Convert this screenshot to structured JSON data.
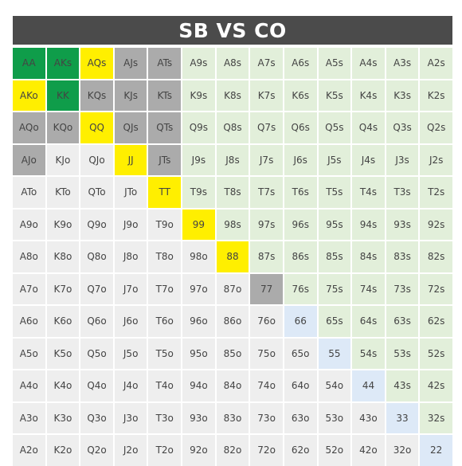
{
  "title": "SB VS CO",
  "colors": {
    "dark_green": "#0f9d4a",
    "yellow": "#ffef00",
    "grey": "#ababab",
    "light_green": "#e2efda",
    "light_blue": "#dde9f7",
    "light_grey": "#eeeeee"
  },
  "grid": [
    [
      {
        "h": "AA",
        "c": "dark_green"
      },
      {
        "h": "AKs",
        "c": "dark_green"
      },
      {
        "h": "AQs",
        "c": "yellow"
      },
      {
        "h": "AJs",
        "c": "grey"
      },
      {
        "h": "ATs",
        "c": "grey"
      },
      {
        "h": "A9s",
        "c": "light_green"
      },
      {
        "h": "A8s",
        "c": "light_green"
      },
      {
        "h": "A7s",
        "c": "light_green"
      },
      {
        "h": "A6s",
        "c": "light_green"
      },
      {
        "h": "A5s",
        "c": "light_green"
      },
      {
        "h": "A4s",
        "c": "light_green"
      },
      {
        "h": "A3s",
        "c": "light_green"
      },
      {
        "h": "A2s",
        "c": "light_green"
      }
    ],
    [
      {
        "h": "AKo",
        "c": "yellow"
      },
      {
        "h": "KK",
        "c": "dark_green"
      },
      {
        "h": "KQs",
        "c": "grey"
      },
      {
        "h": "KJs",
        "c": "grey"
      },
      {
        "h": "KTs",
        "c": "grey"
      },
      {
        "h": "K9s",
        "c": "light_green"
      },
      {
        "h": "K8s",
        "c": "light_green"
      },
      {
        "h": "K7s",
        "c": "light_green"
      },
      {
        "h": "K6s",
        "c": "light_green"
      },
      {
        "h": "K5s",
        "c": "light_green"
      },
      {
        "h": "K4s",
        "c": "light_green"
      },
      {
        "h": "K3s",
        "c": "light_green"
      },
      {
        "h": "K2s",
        "c": "light_green"
      }
    ],
    [
      {
        "h": "AQo",
        "c": "grey"
      },
      {
        "h": "KQo",
        "c": "grey"
      },
      {
        "h": "QQ",
        "c": "yellow"
      },
      {
        "h": "QJs",
        "c": "grey"
      },
      {
        "h": "QTs",
        "c": "grey"
      },
      {
        "h": "Q9s",
        "c": "light_green"
      },
      {
        "h": "Q8s",
        "c": "light_green"
      },
      {
        "h": "Q7s",
        "c": "light_green"
      },
      {
        "h": "Q6s",
        "c": "light_green"
      },
      {
        "h": "Q5s",
        "c": "light_green"
      },
      {
        "h": "Q4s",
        "c": "light_green"
      },
      {
        "h": "Q3s",
        "c": "light_green"
      },
      {
        "h": "Q2s",
        "c": "light_green"
      }
    ],
    [
      {
        "h": "AJo",
        "c": "grey"
      },
      {
        "h": "KJo",
        "c": "light_grey"
      },
      {
        "h": "QJo",
        "c": "light_grey"
      },
      {
        "h": "JJ",
        "c": "yellow"
      },
      {
        "h": "JTs",
        "c": "grey"
      },
      {
        "h": "J9s",
        "c": "light_green"
      },
      {
        "h": "J8s",
        "c": "light_green"
      },
      {
        "h": "J7s",
        "c": "light_green"
      },
      {
        "h": "J6s",
        "c": "light_green"
      },
      {
        "h": "J5s",
        "c": "light_green"
      },
      {
        "h": "J4s",
        "c": "light_green"
      },
      {
        "h": "J3s",
        "c": "light_green"
      },
      {
        "h": "J2s",
        "c": "light_green"
      }
    ],
    [
      {
        "h": "ATo",
        "c": "light_grey"
      },
      {
        "h": "KTo",
        "c": "light_grey"
      },
      {
        "h": "QTo",
        "c": "light_grey"
      },
      {
        "h": "JTo",
        "c": "light_grey"
      },
      {
        "h": "TT",
        "c": "yellow"
      },
      {
        "h": "T9s",
        "c": "light_green"
      },
      {
        "h": "T8s",
        "c": "light_green"
      },
      {
        "h": "T7s",
        "c": "light_green"
      },
      {
        "h": "T6s",
        "c": "light_green"
      },
      {
        "h": "T5s",
        "c": "light_green"
      },
      {
        "h": "T4s",
        "c": "light_green"
      },
      {
        "h": "T3s",
        "c": "light_green"
      },
      {
        "h": "T2s",
        "c": "light_green"
      }
    ],
    [
      {
        "h": "A9o",
        "c": "light_grey"
      },
      {
        "h": "K9o",
        "c": "light_grey"
      },
      {
        "h": "Q9o",
        "c": "light_grey"
      },
      {
        "h": "J9o",
        "c": "light_grey"
      },
      {
        "h": "T9o",
        "c": "light_grey"
      },
      {
        "h": "99",
        "c": "yellow"
      },
      {
        "h": "98s",
        "c": "light_green"
      },
      {
        "h": "97s",
        "c": "light_green"
      },
      {
        "h": "96s",
        "c": "light_green"
      },
      {
        "h": "95s",
        "c": "light_green"
      },
      {
        "h": "94s",
        "c": "light_green"
      },
      {
        "h": "93s",
        "c": "light_green"
      },
      {
        "h": "92s",
        "c": "light_green"
      }
    ],
    [
      {
        "h": "A8o",
        "c": "light_grey"
      },
      {
        "h": "K8o",
        "c": "light_grey"
      },
      {
        "h": "Q8o",
        "c": "light_grey"
      },
      {
        "h": "J8o",
        "c": "light_grey"
      },
      {
        "h": "T8o",
        "c": "light_grey"
      },
      {
        "h": "98o",
        "c": "light_grey"
      },
      {
        "h": "88",
        "c": "yellow"
      },
      {
        "h": "87s",
        "c": "light_green"
      },
      {
        "h": "86s",
        "c": "light_green"
      },
      {
        "h": "85s",
        "c": "light_green"
      },
      {
        "h": "84s",
        "c": "light_green"
      },
      {
        "h": "83s",
        "c": "light_green"
      },
      {
        "h": "82s",
        "c": "light_green"
      }
    ],
    [
      {
        "h": "A7o",
        "c": "light_grey"
      },
      {
        "h": "K7o",
        "c": "light_grey"
      },
      {
        "h": "Q7o",
        "c": "light_grey"
      },
      {
        "h": "J7o",
        "c": "light_grey"
      },
      {
        "h": "T7o",
        "c": "light_grey"
      },
      {
        "h": "97o",
        "c": "light_grey"
      },
      {
        "h": "87o",
        "c": "light_grey"
      },
      {
        "h": "77",
        "c": "grey"
      },
      {
        "h": "76s",
        "c": "light_green"
      },
      {
        "h": "75s",
        "c": "light_green"
      },
      {
        "h": "74s",
        "c": "light_green"
      },
      {
        "h": "73s",
        "c": "light_green"
      },
      {
        "h": "72s",
        "c": "light_green"
      }
    ],
    [
      {
        "h": "A6o",
        "c": "light_grey"
      },
      {
        "h": "K6o",
        "c": "light_grey"
      },
      {
        "h": "Q6o",
        "c": "light_grey"
      },
      {
        "h": "J6o",
        "c": "light_grey"
      },
      {
        "h": "T6o",
        "c": "light_grey"
      },
      {
        "h": "96o",
        "c": "light_grey"
      },
      {
        "h": "86o",
        "c": "light_grey"
      },
      {
        "h": "76o",
        "c": "light_grey"
      },
      {
        "h": "66",
        "c": "light_blue"
      },
      {
        "h": "65s",
        "c": "light_green"
      },
      {
        "h": "64s",
        "c": "light_green"
      },
      {
        "h": "63s",
        "c": "light_green"
      },
      {
        "h": "62s",
        "c": "light_green"
      }
    ],
    [
      {
        "h": "A5o",
        "c": "light_grey"
      },
      {
        "h": "K5o",
        "c": "light_grey"
      },
      {
        "h": "Q5o",
        "c": "light_grey"
      },
      {
        "h": "J5o",
        "c": "light_grey"
      },
      {
        "h": "T5o",
        "c": "light_grey"
      },
      {
        "h": "95o",
        "c": "light_grey"
      },
      {
        "h": "85o",
        "c": "light_grey"
      },
      {
        "h": "75o",
        "c": "light_grey"
      },
      {
        "h": "65o",
        "c": "light_grey"
      },
      {
        "h": "55",
        "c": "light_blue"
      },
      {
        "h": "54s",
        "c": "light_green"
      },
      {
        "h": "53s",
        "c": "light_green"
      },
      {
        "h": "52s",
        "c": "light_green"
      }
    ],
    [
      {
        "h": "A4o",
        "c": "light_grey"
      },
      {
        "h": "K4o",
        "c": "light_grey"
      },
      {
        "h": "Q4o",
        "c": "light_grey"
      },
      {
        "h": "J4o",
        "c": "light_grey"
      },
      {
        "h": "T4o",
        "c": "light_grey"
      },
      {
        "h": "94o",
        "c": "light_grey"
      },
      {
        "h": "84o",
        "c": "light_grey"
      },
      {
        "h": "74o",
        "c": "light_grey"
      },
      {
        "h": "64o",
        "c": "light_grey"
      },
      {
        "h": "54o",
        "c": "light_grey"
      },
      {
        "h": "44",
        "c": "light_blue"
      },
      {
        "h": "43s",
        "c": "light_green"
      },
      {
        "h": "42s",
        "c": "light_green"
      }
    ],
    [
      {
        "h": "A3o",
        "c": "light_grey"
      },
      {
        "h": "K3o",
        "c": "light_grey"
      },
      {
        "h": "Q3o",
        "c": "light_grey"
      },
      {
        "h": "J3o",
        "c": "light_grey"
      },
      {
        "h": "T3o",
        "c": "light_grey"
      },
      {
        "h": "93o",
        "c": "light_grey"
      },
      {
        "h": "83o",
        "c": "light_grey"
      },
      {
        "h": "73o",
        "c": "light_grey"
      },
      {
        "h": "63o",
        "c": "light_grey"
      },
      {
        "h": "53o",
        "c": "light_grey"
      },
      {
        "h": "43o",
        "c": "light_grey"
      },
      {
        "h": "33",
        "c": "light_blue"
      },
      {
        "h": "32s",
        "c": "light_green"
      }
    ],
    [
      {
        "h": "A2o",
        "c": "light_grey"
      },
      {
        "h": "K2o",
        "c": "light_grey"
      },
      {
        "h": "Q2o",
        "c": "light_grey"
      },
      {
        "h": "J2o",
        "c": "light_grey"
      },
      {
        "h": "T2o",
        "c": "light_grey"
      },
      {
        "h": "92o",
        "c": "light_grey"
      },
      {
        "h": "82o",
        "c": "light_grey"
      },
      {
        "h": "72o",
        "c": "light_grey"
      },
      {
        "h": "62o",
        "c": "light_grey"
      },
      {
        "h": "52o",
        "c": "light_grey"
      },
      {
        "h": "42o",
        "c": "light_grey"
      },
      {
        "h": "32o",
        "c": "light_grey"
      },
      {
        "h": "22",
        "c": "light_blue"
      }
    ]
  ]
}
